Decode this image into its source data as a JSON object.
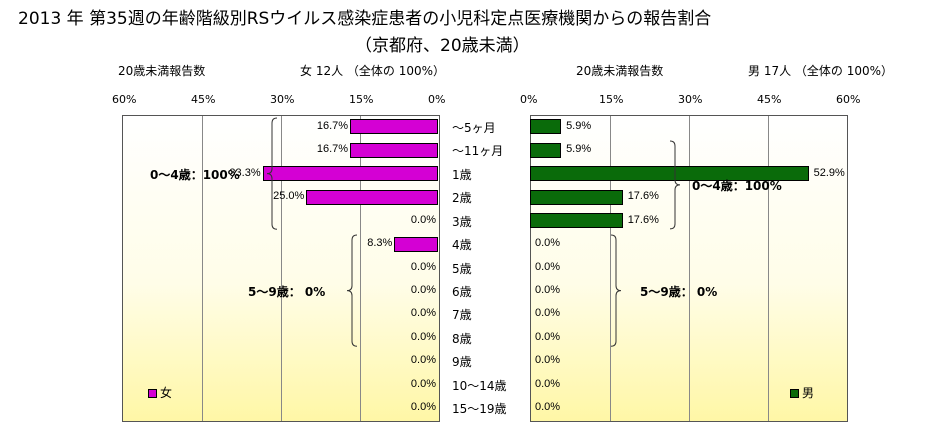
{
  "title_line1": "2013 年 第35週の年齢階級別RSウイルス感染症患者の小児科定点医療機関からの報告割合",
  "title_line2": "（京都府、20歳未満）",
  "colors": {
    "female": "#d400d4",
    "male": "#0a6b0a"
  },
  "female_panel": {
    "count_label": "20歳未満報告数",
    "total_label": "女  12人  （全体の   100%）",
    "legend": "女",
    "groups": [
      {
        "label": "0～4歳：100%",
        "from": 0,
        "to": 4
      },
      {
        "label": "5～9歳：  0%",
        "from": 5,
        "to": 9
      }
    ]
  },
  "male_panel": {
    "count_label": "20歳未満報告数",
    "total_label": "男  17人  （全体の   100%）",
    "legend": "男",
    "groups": [
      {
        "label": "0～4歳：100%",
        "from": 1,
        "to": 4
      },
      {
        "label": "5～9歳：  0%",
        "from": 5,
        "to": 9
      }
    ]
  },
  "chart_data": {
    "type": "bar",
    "orientation": "horizontal",
    "categories": [
      "～5ヶ月",
      "～11ヶ月",
      "1歳",
      "2歳",
      "3歳",
      "4歳",
      "5歳",
      "6歳",
      "7歳",
      "8歳",
      "9歳",
      "10～14歳",
      "15～19歳"
    ],
    "series": [
      {
        "name": "女",
        "values": [
          16.7,
          16.7,
          33.3,
          25.0,
          0.0,
          8.3,
          0.0,
          0.0,
          0.0,
          0.0,
          0.0,
          0.0,
          0.0
        ],
        "labels": [
          "16.7%",
          "16.7%",
          "33.3%",
          "25.0%",
          "0.0%",
          "8.3%",
          "0.0%",
          "0.0%",
          "0.0%",
          "0.0%",
          "0.0%",
          "0.0%",
          "0.0%"
        ]
      },
      {
        "name": "男",
        "values": [
          5.9,
          5.9,
          52.9,
          17.6,
          17.6,
          0.0,
          0.0,
          0.0,
          0.0,
          0.0,
          0.0,
          0.0,
          0.0
        ],
        "labels": [
          "5.9%",
          "5.9%",
          "52.9%",
          "17.6%",
          "17.6%",
          "0.0%",
          "0.0%",
          "0.0%",
          "0.0%",
          "0.0%",
          "0.0%",
          "0.0%",
          "0.0%"
        ]
      }
    ],
    "ticks": [
      "60%",
      "45%",
      "30%",
      "15%",
      "0%"
    ],
    "ticks_right": [
      "0%",
      "15%",
      "30%",
      "45%",
      "60%"
    ],
    "xlim": [
      0,
      60
    ],
    "grid": true
  }
}
